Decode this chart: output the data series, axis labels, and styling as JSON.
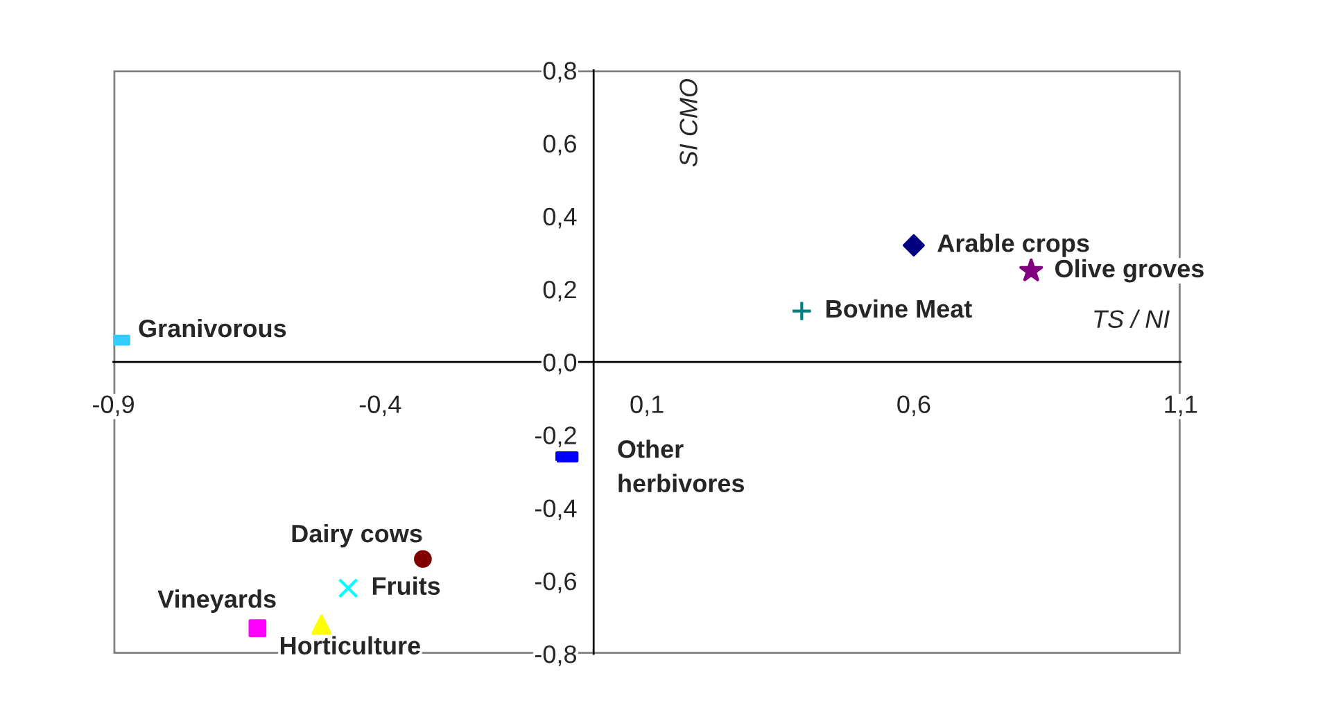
{
  "chart_data": {
    "type": "scatter",
    "xlabel": "TS / NI",
    "ylabel": "SI CMO",
    "xlim": [
      -0.9,
      1.1
    ],
    "ylim": [
      -0.8,
      0.8
    ],
    "xticks": [
      {
        "value": -0.9,
        "label": "-0,9"
      },
      {
        "value": -0.4,
        "label": "-0,4"
      },
      {
        "value": 0.1,
        "label": "0,1"
      },
      {
        "value": 0.6,
        "label": "0,6"
      },
      {
        "value": 1.1,
        "label": "1,1"
      }
    ],
    "yticks": [
      {
        "value": -0.8,
        "label": "-0,8"
      },
      {
        "value": -0.6,
        "label": "-0,6"
      },
      {
        "value": -0.4,
        "label": "-0,4"
      },
      {
        "value": -0.2,
        "label": "-0,2"
      },
      {
        "value": 0.0,
        "label": "0,0"
      },
      {
        "value": 0.2,
        "label": "0,2"
      },
      {
        "value": 0.4,
        "label": "0,4"
      },
      {
        "value": 0.6,
        "label": "0,6"
      },
      {
        "value": 0.8,
        "label": "0,8"
      }
    ],
    "grid": false,
    "series": [
      {
        "name": "Arable crops",
        "color": "#000080",
        "marker": "diamond",
        "x": [
          0.6
        ],
        "values": [
          0.32
        ]
      },
      {
        "name": "Olive groves",
        "color": "#800080",
        "marker": "star",
        "x": [
          0.82
        ],
        "values": [
          0.25
        ]
      },
      {
        "name": "Bovine Meat",
        "color": "#008080",
        "marker": "plus",
        "x": [
          0.39
        ],
        "values": [
          0.14
        ]
      },
      {
        "name": "Granivorous",
        "color": "#33ccff",
        "x": [
          -0.89
        ],
        "values": [
          0.06
        ]
      },
      {
        "name": "Other\nherbivores",
        "color": "#0000ff",
        "x": [
          -0.05
        ],
        "values": [
          -0.26
        ]
      },
      {
        "name": "Dairy cows",
        "color": "#800000",
        "marker": "circle",
        "x": [
          -0.32
        ],
        "values": [
          -0.54
        ]
      },
      {
        "name": "Fruits",
        "color": "#00ffff",
        "marker": "cross",
        "x": [
          -0.46
        ],
        "values": [
          -0.62
        ]
      },
      {
        "name": "Vineyards",
        "color": "#ff00ff",
        "marker": "square",
        "x": [
          -0.63
        ],
        "values": [
          -0.73
        ]
      },
      {
        "name": "Horticulture",
        "color": "#ffff00",
        "marker": "triangle",
        "x": [
          -0.51
        ],
        "values": [
          -0.72
        ]
      }
    ]
  }
}
